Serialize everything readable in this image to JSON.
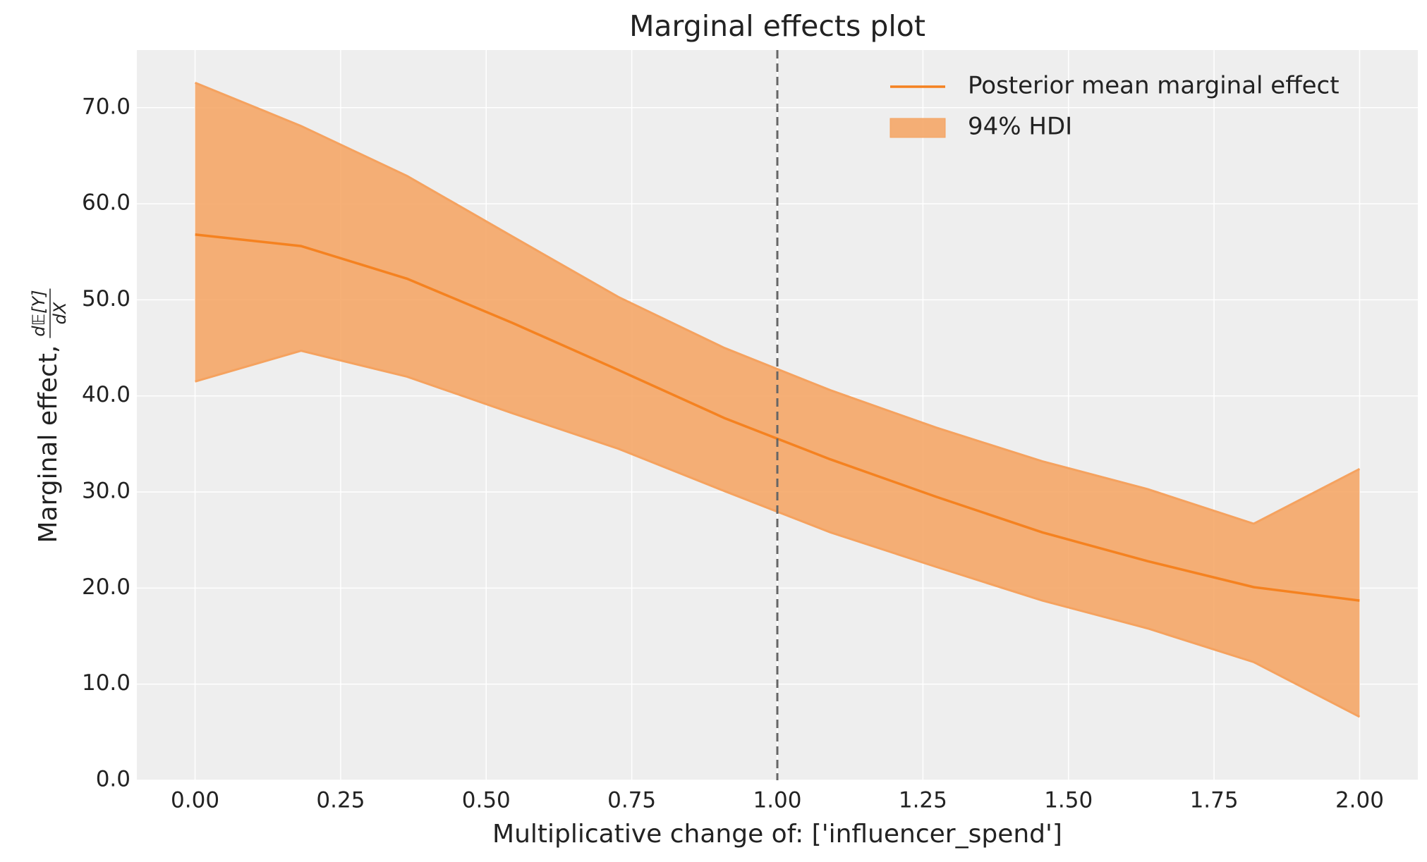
{
  "chart_data": {
    "type": "line_band",
    "title": "Marginal effects plot",
    "x_label": "Multiplicative change of: ['influencer_spend']",
    "y_label": "Marginal effect,",
    "y_label_fraction": {
      "numerator": "d𝔼[Y]",
      "denominator": "dX"
    },
    "x": [
      0,
      0.182,
      0.364,
      0.545,
      0.727,
      0.909,
      1.091,
      1.273,
      1.455,
      1.636,
      1.818,
      2.0
    ],
    "series": [
      {
        "name": "Posterior mean marginal effect",
        "color": "#f58220",
        "values": [
          56.8,
          55.6,
          52.2,
          47.6,
          42.7,
          37.7,
          33.4,
          29.5,
          25.8,
          22.8,
          20.1,
          18.7
        ]
      }
    ],
    "band": {
      "name": "94% HDI",
      "color": "#f5a25f",
      "lower": [
        41.5,
        44.7,
        42.0,
        38.2,
        34.5,
        30.1,
        25.8,
        22.2,
        18.7,
        15.8,
        12.3,
        6.6
      ],
      "upper": [
        72.6,
        68.1,
        62.9,
        56.6,
        50.3,
        45.0,
        40.6,
        36.7,
        33.2,
        30.3,
        26.7,
        32.4
      ]
    },
    "vline": 1.0,
    "xlim": [
      -0.1,
      2.1
    ],
    "ylim": [
      0,
      76
    ],
    "xticks": [
      {
        "value": 0,
        "label": "0.00"
      },
      {
        "value": 0.25,
        "label": "0.25"
      },
      {
        "value": 0.5,
        "label": "0.50"
      },
      {
        "value": 0.75,
        "label": "0.75"
      },
      {
        "value": 1,
        "label": "1.00"
      },
      {
        "value": 1.25,
        "label": "1.25"
      },
      {
        "value": 1.5,
        "label": "1.50"
      },
      {
        "value": 1.75,
        "label": "1.75"
      },
      {
        "value": 2,
        "label": "2.00"
      }
    ],
    "yticks": [
      {
        "value": 0,
        "label": "0.0"
      },
      {
        "value": 10,
        "label": "10.0"
      },
      {
        "value": 20,
        "label": "20.0"
      },
      {
        "value": 30,
        "label": "30.0"
      },
      {
        "value": 40,
        "label": "40.0"
      },
      {
        "value": 50,
        "label": "50.0"
      },
      {
        "value": 60,
        "label": "60.0"
      },
      {
        "value": 70,
        "label": "70.0"
      }
    ],
    "grid": true,
    "legend": "upper right"
  }
}
